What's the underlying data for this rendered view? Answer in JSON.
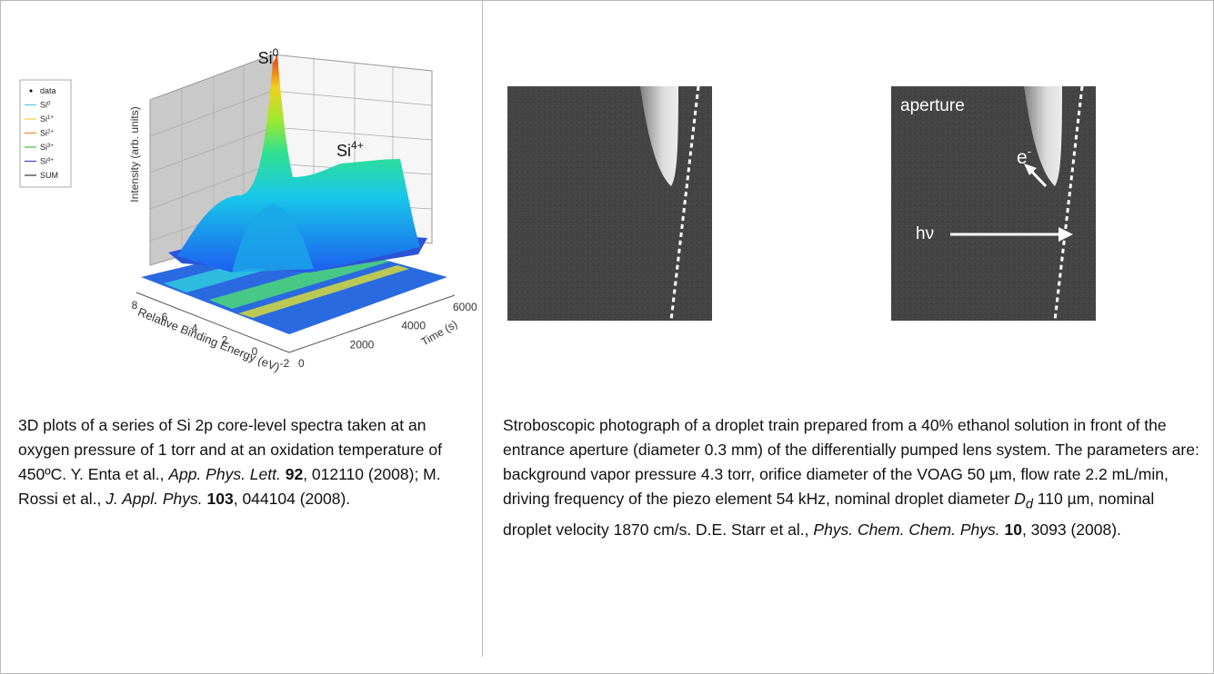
{
  "left": {
    "figure": {
      "peak_labels": [
        {
          "label": "Si",
          "sup": "0"
        },
        {
          "label": "Si",
          "sup": "4+"
        }
      ],
      "legend": [
        {
          "label": "data",
          "color": "#000000"
        },
        {
          "label": "Si",
          "sup": "0",
          "color": "#55c8e8"
        },
        {
          "label": "Si",
          "sup": "1+",
          "color": "#f0d040"
        },
        {
          "label": "Si",
          "sup": "2+",
          "color": "#f08a30"
        },
        {
          "label": "Si",
          "sup": "3+",
          "color": "#40c040"
        },
        {
          "label": "Si",
          "sup": "4+",
          "color": "#4040d0"
        },
        {
          "label": "SUM",
          "color": "#333333"
        }
      ],
      "z_label": "Intensity (arb. units)",
      "energy_label": "Relative Binding Energy (eV)",
      "energy_ticks": [
        8,
        6,
        4,
        2,
        0,
        -2
      ],
      "time_label": "Time (s)",
      "time_ticks": [
        0,
        2000,
        4000,
        6000
      ]
    },
    "caption": [
      "3D plots of a series of Si 2p core-level spectra taken at an oxygen pressure of 1 torr and at an oxidation temperature of 450ºC. Y. Enta et al., ",
      "App. Phys. Lett. ",
      "92",
      ", 012110 (2008); M. Rossi et al., ",
      "J. Appl. Phys. ",
      "103",
      ", 044104 (2008)."
    ]
  },
  "right": {
    "figure": {
      "aperture": "aperture",
      "electron": "e",
      "electron_sup": "-",
      "photon": "hν"
    },
    "caption": [
      "Stroboscopic photograph of a droplet train prepared from a 40% ethanol solution in front of the entrance aperture (diameter 0.3 mm) of the differentially pumped lens system.  The parameters are: background vapor pressure 4.3 torr, orifice diameter of the VOAG 50 µm, flow rate 2.2 mL/min, driving frequency of the piezo element 54 kHz, nominal droplet diameter ",
      "D",
      "d",
      " 110 µm, nominal droplet velocity 1870 cm/s. D.E. Starr et al., ",
      "Phys. Chem. Chem. Phys. ",
      "10",
      ", 3093 (2008)."
    ]
  }
}
